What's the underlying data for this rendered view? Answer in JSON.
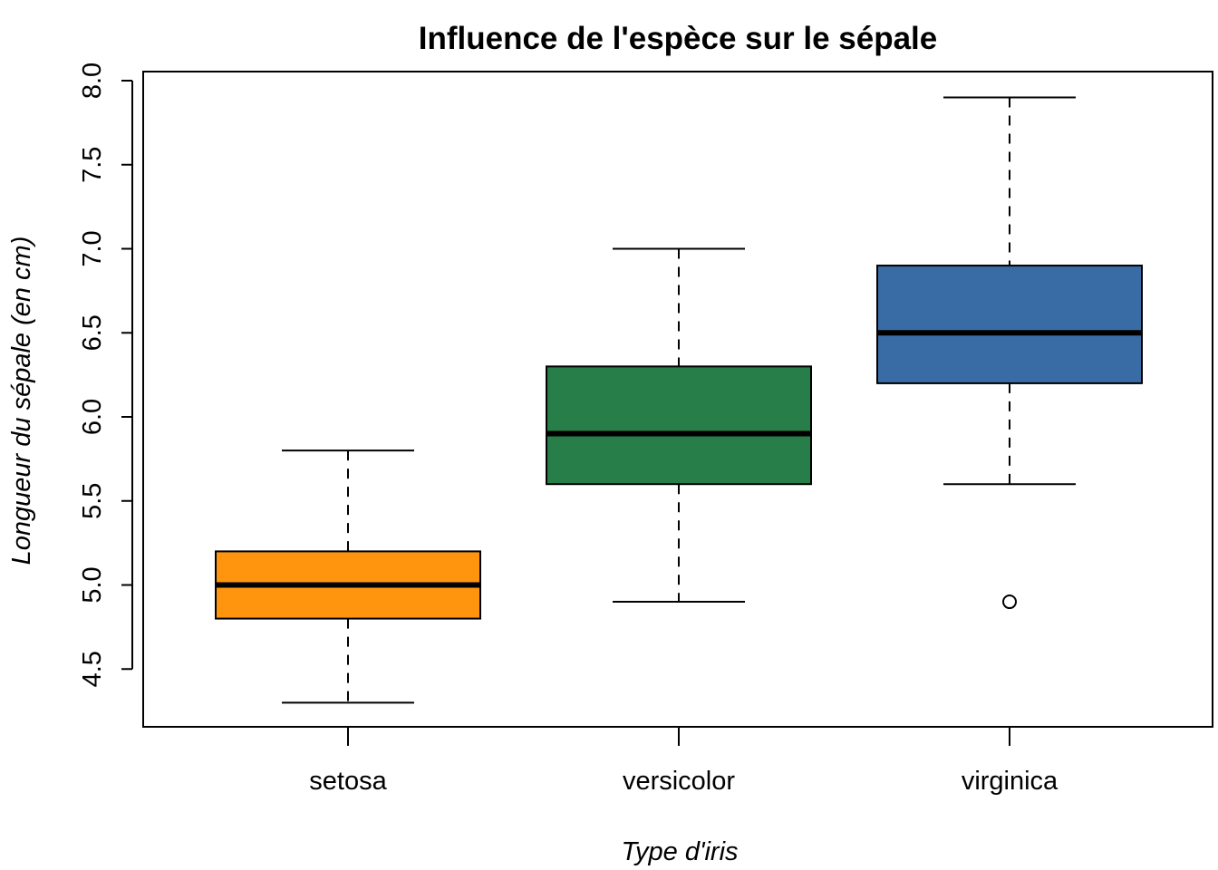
{
  "chart_data": {
    "type": "box",
    "title": "Influence de l'espèce sur le sépale",
    "xlabel": "Type d'iris",
    "ylabel": "Longueur du sépale (en cm)",
    "ylim": [
      4.3,
      8.0
    ],
    "yticks": [
      "4.5",
      "5.0",
      "5.5",
      "6.0",
      "6.5",
      "7.0",
      "7.5",
      "8.0"
    ],
    "grid": false,
    "categories": [
      "setosa",
      "versicolor",
      "virginica"
    ],
    "boxes": [
      {
        "category": "setosa",
        "whisker_low": 4.3,
        "q1": 4.8,
        "median": 5.0,
        "q3": 5.2,
        "whisker_high": 5.8,
        "outliers": [],
        "color": "#FF950E"
      },
      {
        "category": "versicolor",
        "whisker_low": 4.9,
        "q1": 5.6,
        "median": 5.9,
        "q3": 6.3,
        "whisker_high": 7.0,
        "outliers": [],
        "color": "#277E48"
      },
      {
        "category": "virginica",
        "whisker_low": 5.6,
        "q1": 6.2,
        "median": 6.5,
        "q3": 6.9,
        "whisker_high": 7.9,
        "outliers": [
          4.9
        ],
        "color": "#396CA5"
      }
    ]
  }
}
